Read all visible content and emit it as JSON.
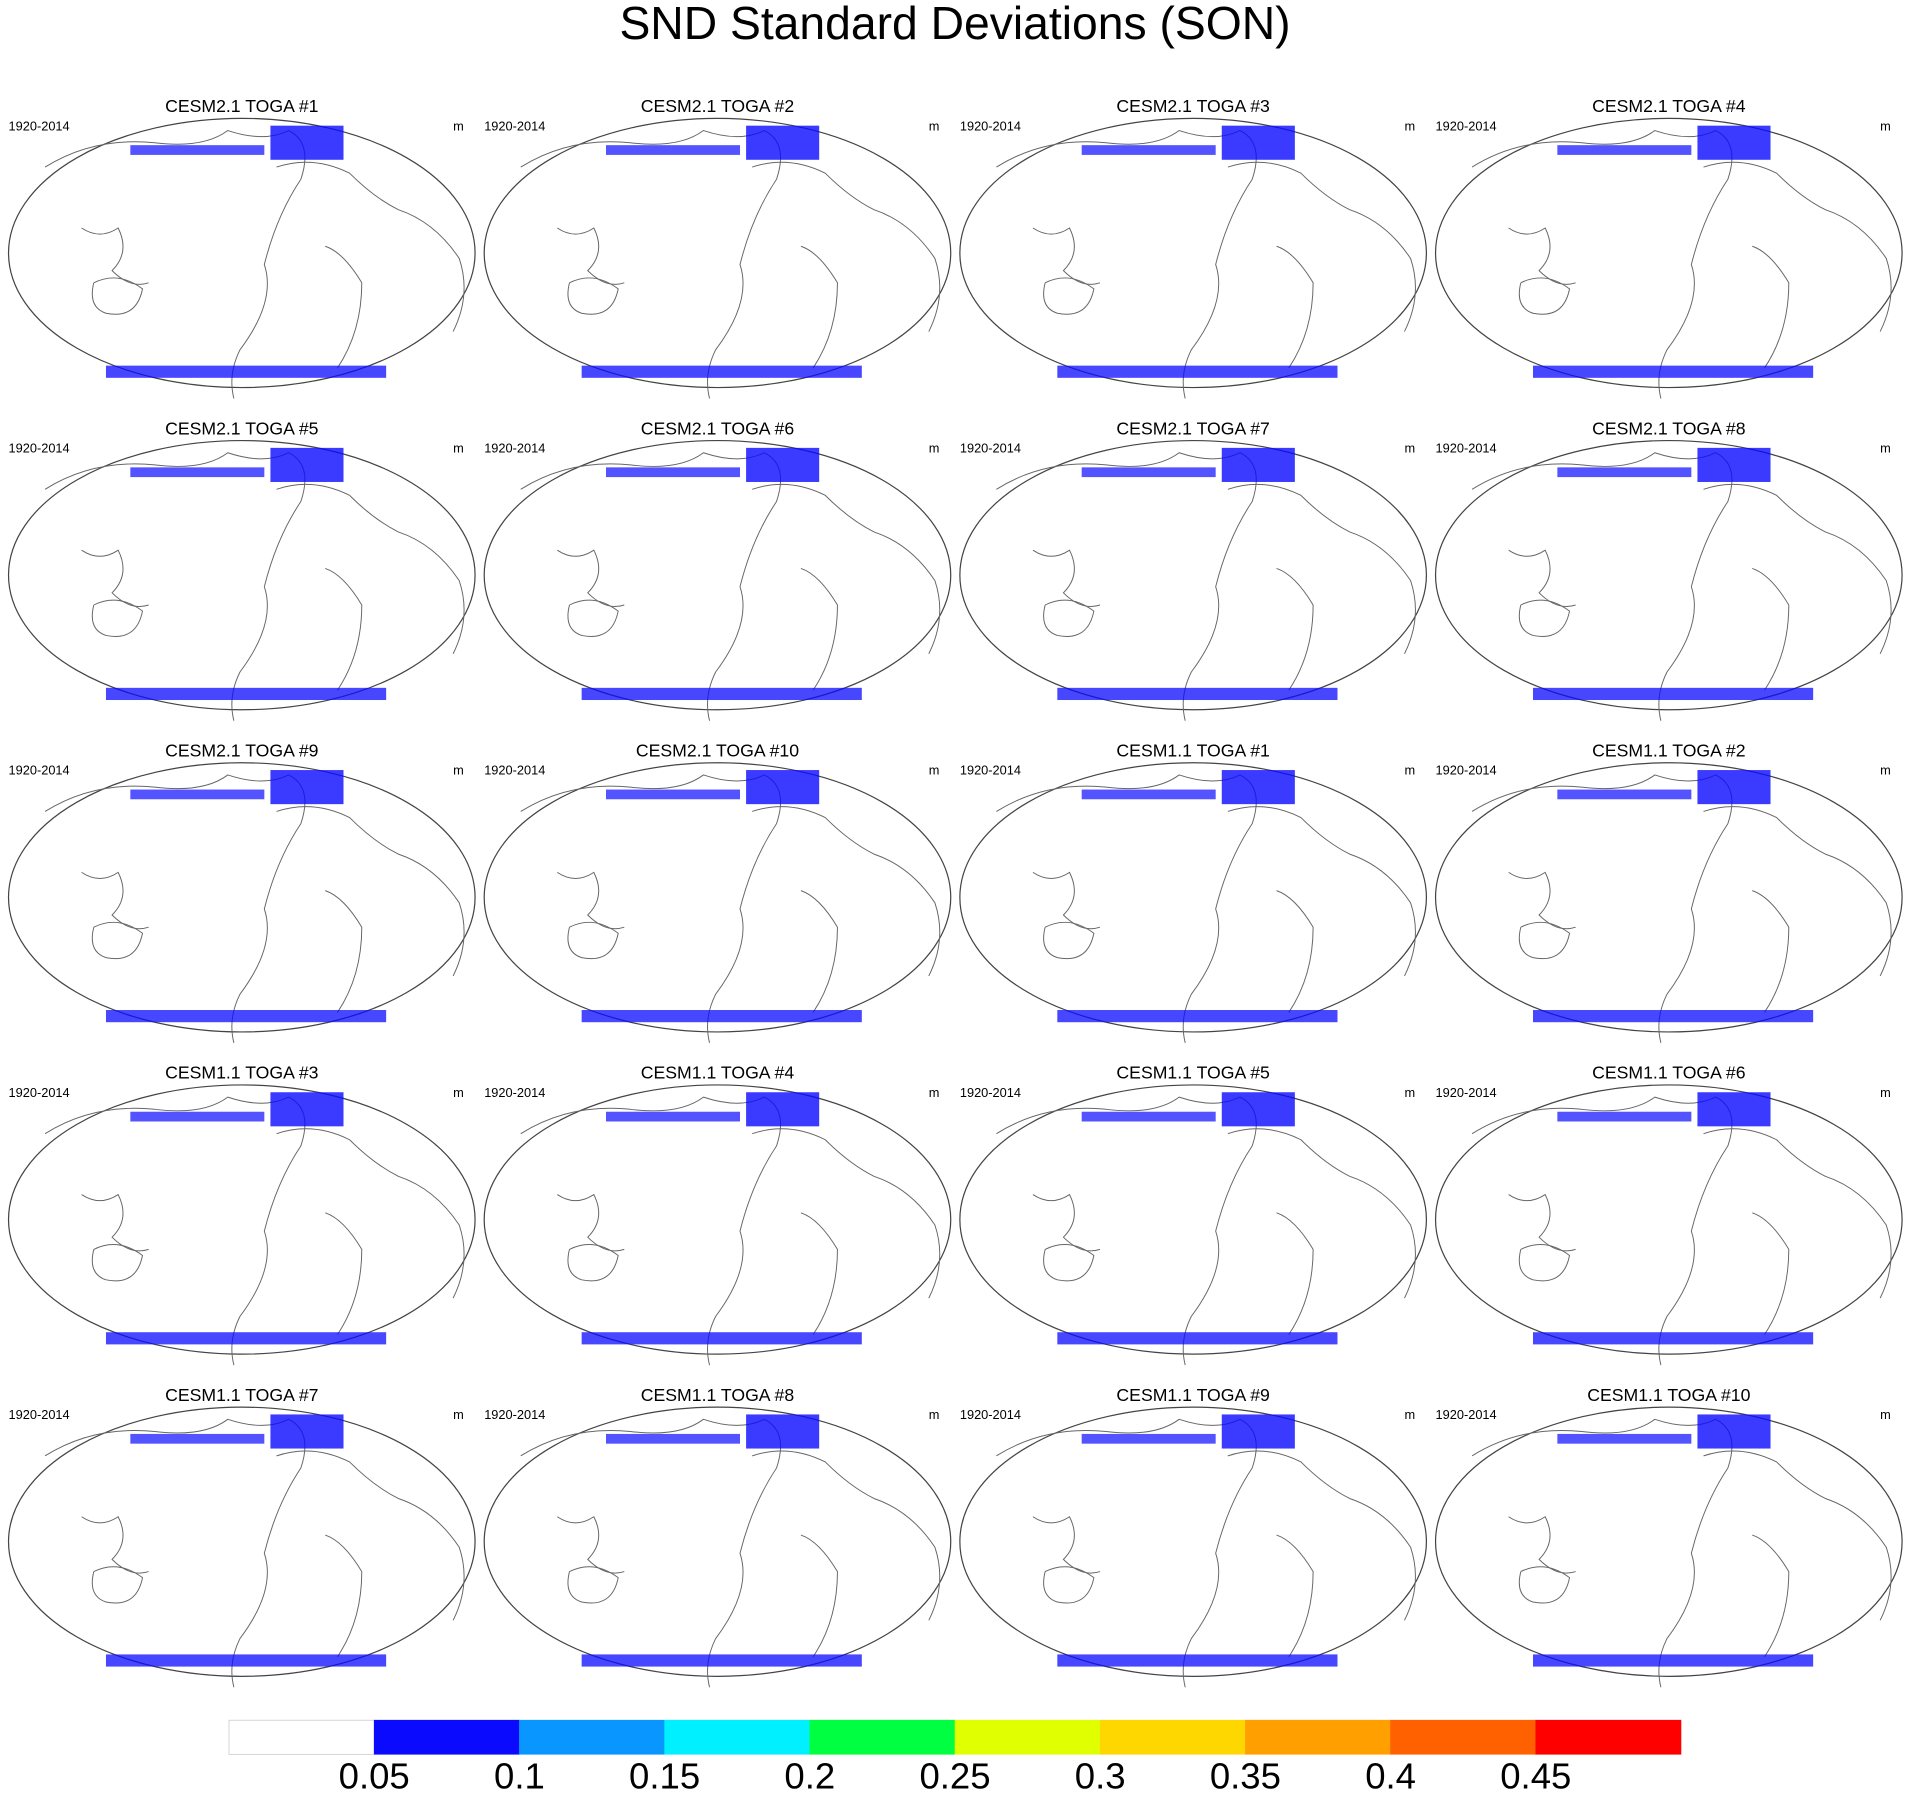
{
  "header": {
    "title": "SND Standard Deviations (SON)"
  },
  "panels": [
    {
      "title": "CESM2.1 TOGA #1",
      "period": "1920-2014",
      "units": "m"
    },
    {
      "title": "CESM2.1 TOGA #2",
      "period": "1920-2014",
      "units": "m"
    },
    {
      "title": "CESM2.1 TOGA #3",
      "period": "1920-2014",
      "units": "m"
    },
    {
      "title": "CESM2.1 TOGA #4",
      "period": "1920-2014",
      "units": "m"
    },
    {
      "title": "CESM2.1 TOGA #5",
      "period": "1920-2014",
      "units": "m"
    },
    {
      "title": "CESM2.1 TOGA #6",
      "period": "1920-2014",
      "units": "m"
    },
    {
      "title": "CESM2.1 TOGA #7",
      "period": "1920-2014",
      "units": "m"
    },
    {
      "title": "CESM2.1 TOGA #8",
      "period": "1920-2014",
      "units": "m"
    },
    {
      "title": "CESM2.1 TOGA #9",
      "period": "1920-2014",
      "units": "m"
    },
    {
      "title": "CESM2.1 TOGA #10",
      "period": "1920-2014",
      "units": "m"
    },
    {
      "title": "CESM1.1 TOGA #1",
      "period": "1920-2014",
      "units": "m"
    },
    {
      "title": "CESM1.1 TOGA #2",
      "period": "1920-2014",
      "units": "m"
    },
    {
      "title": "CESM1.1 TOGA #3",
      "period": "1920-2014",
      "units": "m"
    },
    {
      "title": "CESM1.1 TOGA #4",
      "period": "1920-2014",
      "units": "m"
    },
    {
      "title": "CESM1.1 TOGA #5",
      "period": "1920-2014",
      "units": "m"
    },
    {
      "title": "CESM1.1 TOGA #6",
      "period": "1920-2014",
      "units": "m"
    },
    {
      "title": "CESM1.1 TOGA #7",
      "period": "1920-2014",
      "units": "m"
    },
    {
      "title": "CESM1.1 TOGA #8",
      "period": "1920-2014",
      "units": "m"
    },
    {
      "title": "CESM1.1 TOGA #9",
      "period": "1920-2014",
      "units": "m"
    },
    {
      "title": "CESM1.1 TOGA #10",
      "period": "1920-2014",
      "units": "m"
    }
  ],
  "colorbar": {
    "levels": [
      0.05,
      0.1,
      0.15,
      0.2,
      0.25,
      0.3,
      0.35,
      0.4,
      0.45
    ],
    "colors": [
      "#ffffff",
      "#0a0aff",
      "#0a96ff",
      "#00f0ff",
      "#00ff40",
      "#e0ff00",
      "#ffd700",
      "#ffa000",
      "#ff6000",
      "#ff0000"
    ]
  }
}
